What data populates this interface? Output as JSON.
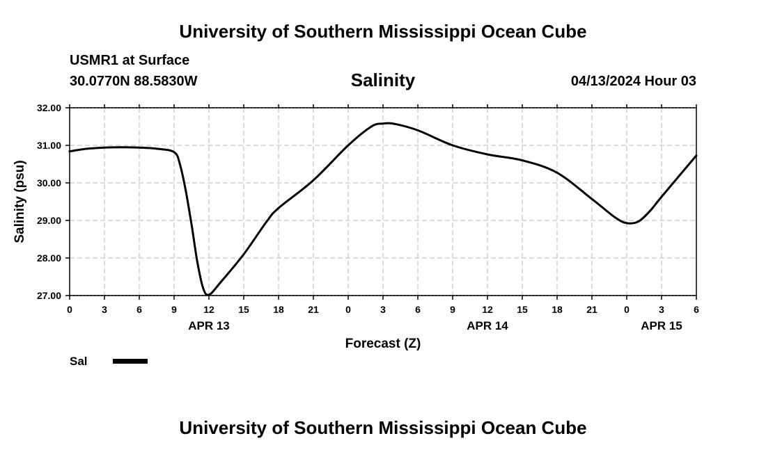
{
  "header": {
    "title": "University of Southern Mississippi Ocean Cube",
    "station": "USMR1 at Surface",
    "coordinates": "30.0770N  88.5830W",
    "timestamp": "04/13/2024 Hour 03"
  },
  "footer": {
    "title": "University of Southern Mississippi Ocean Cube"
  },
  "chart_data": {
    "type": "line",
    "title": "Salinity",
    "xlabel": "Forecast (Z)",
    "ylabel": "Salinity (psu)",
    "ylim": [
      27,
      32
    ],
    "y_ticks": [
      "27.00",
      "28.00",
      "29.00",
      "30.00",
      "31.00",
      "32.00"
    ],
    "x_range_hours": [
      0,
      54
    ],
    "x_ticks": [
      "0",
      "3",
      "6",
      "9",
      "12",
      "15",
      "18",
      "21",
      "0",
      "3",
      "6",
      "9",
      "12",
      "15",
      "18",
      "21",
      "0",
      "3",
      "6"
    ],
    "date_labels": [
      {
        "label": "APR 13",
        "tick_index": 4
      },
      {
        "label": "APR 14",
        "tick_index": 12
      },
      {
        "label": "APR 15",
        "tick_index": 17
      }
    ],
    "grid": true,
    "legend_position": "bottom-left",
    "series": [
      {
        "name": "Sal",
        "color": "#000000",
        "x": [
          0,
          1.5,
          3,
          4.5,
          6,
          7.5,
          9,
          9.5,
          10,
          10.5,
          11,
          11.5,
          12,
          13,
          15,
          17,
          18,
          21,
          24,
          26,
          27,
          28,
          30,
          33,
          36,
          39,
          42,
          45,
          47,
          48,
          49,
          50,
          51,
          54
        ],
        "values": [
          30.84,
          30.91,
          30.94,
          30.95,
          30.94,
          30.91,
          30.82,
          30.5,
          29.8,
          28.9,
          27.9,
          27.2,
          27.02,
          27.35,
          28.1,
          28.98,
          29.33,
          30.07,
          31.0,
          31.5,
          31.58,
          31.57,
          31.4,
          31.0,
          30.76,
          30.6,
          30.27,
          29.57,
          29.08,
          28.93,
          28.97,
          29.25,
          29.63,
          30.73
        ]
      }
    ]
  }
}
